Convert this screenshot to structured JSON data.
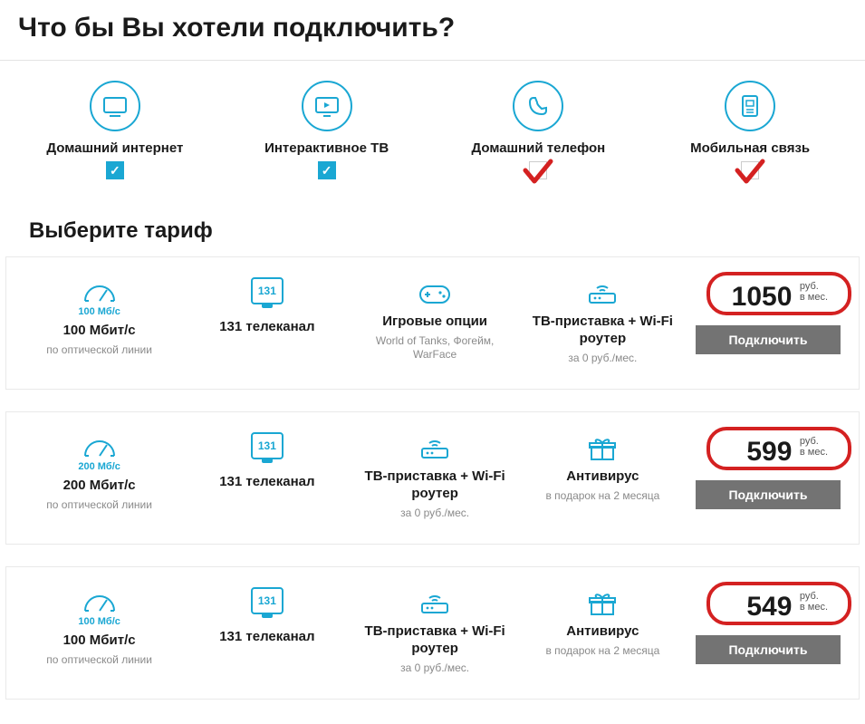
{
  "colors": {
    "accent": "#1aa7d3",
    "text": "#1a1a1a",
    "muted": "#8a8a8a",
    "btn_bg": "#737373",
    "border": "#e9e9e9",
    "annot_red": "#d42121"
  },
  "header": {
    "title": "Что бы Вы хотели подключить?",
    "tariff_title": "Выберите тариф"
  },
  "services": [
    {
      "id": "home-internet",
      "label": "Домашний интернет",
      "checked": true,
      "red_mark": false
    },
    {
      "id": "iptv",
      "label": "Интерактивное ТВ",
      "checked": true,
      "red_mark": false
    },
    {
      "id": "home-phone",
      "label": "Домашний телефон",
      "checked": false,
      "red_mark": true
    },
    {
      "id": "mobile",
      "label": "Мобильная связь",
      "checked": false,
      "red_mark": true
    }
  ],
  "price_unit_top": "руб.",
  "price_unit_bot": "в мес.",
  "connect_label": "Подключить",
  "tariffs": [
    {
      "speed_mini": "100 Мб/c",
      "speed_main": "100 Мбит/с",
      "speed_sub": "по оптической линии",
      "tv_count": "131",
      "tv_main": "131 телеканал",
      "col3_main": "Игровые опции",
      "col3_sub": "World of Tanks, Фогейм, WarFace",
      "col3_icon": "gamepad",
      "col4_main": "ТВ-приставка + Wi-Fi роутер",
      "col4_sub": "за 0 руб./мес.",
      "col4_icon": "router",
      "price": "1050"
    },
    {
      "speed_mini": "200 Мб/c",
      "speed_main": "200 Мбит/с",
      "speed_sub": "по оптической линии",
      "tv_count": "131",
      "tv_main": "131 телеканал",
      "col3_main": "ТВ-приставка + Wi-Fi роутер",
      "col3_sub": "за 0 руб./мес.",
      "col3_icon": "router",
      "col4_main": "Антивирус",
      "col4_sub": "в подарок на 2 месяца",
      "col4_icon": "gift",
      "price": "599"
    },
    {
      "speed_mini": "100 Мб/c",
      "speed_main": "100 Мбит/с",
      "speed_sub": "по оптической линии",
      "tv_count": "131",
      "tv_main": "131 телеканал",
      "col3_main": "ТВ-приставка + Wi-Fi роутер",
      "col3_sub": "за 0 руб./мес.",
      "col3_icon": "router",
      "col4_main": "Антивирус",
      "col4_sub": "в подарок на 2 месяца",
      "col4_icon": "gift",
      "price": "549"
    }
  ]
}
